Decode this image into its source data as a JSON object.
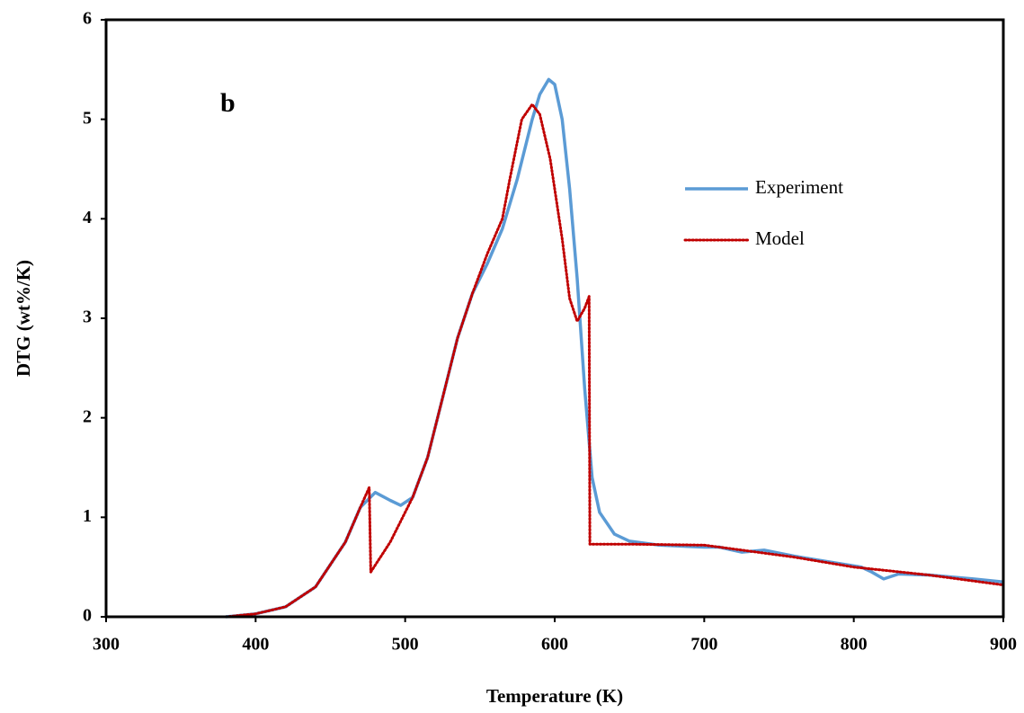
{
  "chart_data": {
    "type": "line",
    "x_label": "Temperature (K)",
    "y_label": "DTG (wt%/K)",
    "annotation": "b",
    "xlim": [
      300,
      900
    ],
    "xticks": [
      300,
      400,
      500,
      600,
      700,
      800,
      900
    ],
    "ylim": [
      0,
      6
    ],
    "yticks": [
      0,
      1,
      2,
      3,
      4,
      5,
      6
    ],
    "series": [
      {
        "name": "Experiment",
        "color": "#5b9bd5",
        "style": "solid",
        "x": [
          380,
          400,
          420,
          440,
          460,
          470,
          480,
          490,
          497,
          505,
          515,
          525,
          535,
          545,
          555,
          565,
          575,
          585,
          590,
          596,
          600,
          605,
          610,
          615,
          620,
          625,
          630,
          640,
          650,
          670,
          700,
          710,
          725,
          740,
          760,
          780,
          805,
          812,
          820,
          830,
          850,
          880,
          900
        ],
        "values": [
          0,
          0.03,
          0.1,
          0.3,
          0.75,
          1.1,
          1.25,
          1.17,
          1.12,
          1.2,
          1.6,
          2.2,
          2.8,
          3.25,
          3.55,
          3.9,
          4.4,
          5.0,
          5.25,
          5.4,
          5.35,
          5.0,
          4.3,
          3.4,
          2.3,
          1.4,
          1.05,
          0.83,
          0.76,
          0.72,
          0.7,
          0.7,
          0.65,
          0.67,
          0.61,
          0.56,
          0.5,
          0.45,
          0.38,
          0.43,
          0.42,
          0.38,
          0.35
        ]
      },
      {
        "name": "Model",
        "color": "#c00000",
        "style": "dotted",
        "x": [
          380,
          400,
          420,
          440,
          460,
          470,
          476,
          477,
          490,
          505,
          515,
          525,
          535,
          545,
          555,
          565,
          570,
          578,
          585,
          590,
          597,
          605,
          610,
          615,
          620,
          623,
          623.5,
          650,
          700,
          720,
          760,
          800,
          850,
          900
        ],
        "values": [
          0,
          0.03,
          0.1,
          0.3,
          0.75,
          1.1,
          1.3,
          0.45,
          0.75,
          1.2,
          1.6,
          2.2,
          2.8,
          3.25,
          3.65,
          4.0,
          4.4,
          5.0,
          5.15,
          5.05,
          4.6,
          3.8,
          3.2,
          2.97,
          3.1,
          3.22,
          0.73,
          0.73,
          0.72,
          0.68,
          0.6,
          0.5,
          0.42,
          0.32
        ]
      }
    ]
  }
}
